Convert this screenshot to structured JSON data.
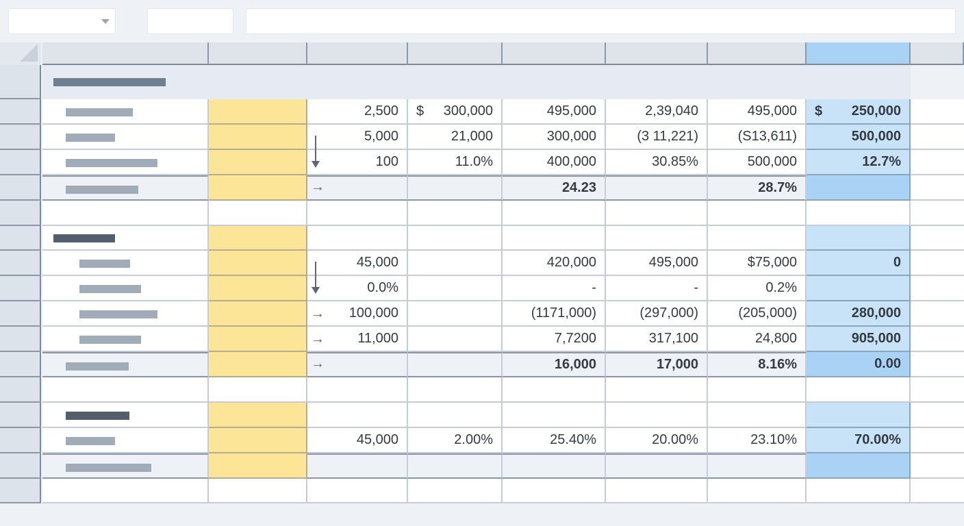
{
  "rows": [
    {
      "kind": "data",
      "vals": [
        "2,500",
        "300,000",
        "495,000",
        "2,39,040",
        "495,000",
        "250,000"
      ],
      "dollars": [
        1,
        5
      ],
      "blue": false
    },
    {
      "kind": "data",
      "vals": [
        "5,000",
        "21,000",
        "300,000",
        "(3 11,221)",
        "(S13,611)",
        "500,000"
      ],
      "blue": false
    },
    {
      "kind": "data",
      "vals": [
        "100",
        "11.0%",
        "400,000",
        "30.85%",
        "500,000",
        "12.7%"
      ],
      "blue": false
    },
    {
      "kind": "subtotal",
      "vals": [
        "",
        "",
        "24.23",
        "",
        "28.7%",
        ""
      ]
    },
    {
      "kind": "empty"
    },
    {
      "kind": "header"
    },
    {
      "kind": "data",
      "vals": [
        "45,000",
        "",
        "420,000",
        "495,000",
        "$75,000",
        "0"
      ]
    },
    {
      "kind": "data",
      "vals": [
        "0.0%",
        "",
        "-",
        "-",
        "0.2%",
        ""
      ]
    },
    {
      "kind": "data",
      "vals": [
        "100,000",
        "",
        "(1171,000)",
        "(297,000)",
        "(205,000)",
        "280,000"
      ]
    },
    {
      "kind": "data",
      "vals": [
        "11,000",
        "",
        "7,7200",
        "317,100",
        "24,800",
        "905,000"
      ]
    },
    {
      "kind": "subtotal",
      "vals": [
        "",
        "",
        "16,000",
        "17,000",
        "8.16%",
        "0.00"
      ]
    },
    {
      "kind": "empty"
    },
    {
      "kind": "header"
    },
    {
      "kind": "data",
      "vals": [
        "45,000",
        "2.00%",
        "25.40%",
        "20.00%",
        "23.10%",
        "70.00%"
      ]
    },
    {
      "kind": "subtotal",
      "vals": [
        "",
        "",
        "",
        "",
        "",
        ""
      ]
    },
    {
      "kind": "empty"
    }
  ],
  "symbols": {
    "dollar": "$",
    "arrow_right": "→"
  },
  "colors": {
    "highlight_yellow": "#fde597",
    "highlight_blue": "#a9d2f4"
  }
}
